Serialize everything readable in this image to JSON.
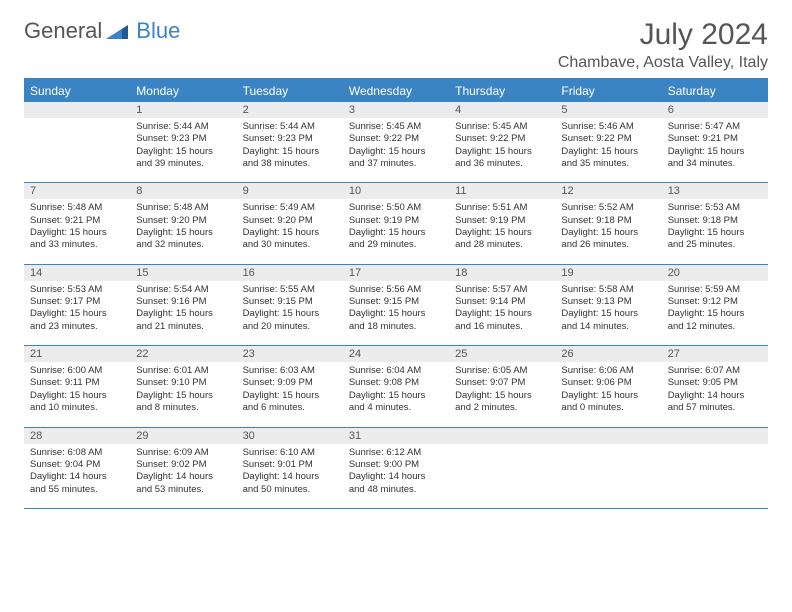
{
  "logo": {
    "general": "General",
    "blue": "Blue"
  },
  "title": "July 2024",
  "location": "Chambave, Aosta Valley, Italy",
  "colors": {
    "header_bg": "#3b84c4",
    "header_text": "#ffffff",
    "daynum_bg": "#ececec",
    "body_text": "#333333",
    "rule": "#3b84c4"
  },
  "dayHeaders": [
    "Sunday",
    "Monday",
    "Tuesday",
    "Wednesday",
    "Thursday",
    "Friday",
    "Saturday"
  ],
  "weeks": [
    [
      null,
      {
        "n": "1",
        "sr": "5:44 AM",
        "ss": "9:23 PM",
        "dl": "15 hours and 39 minutes."
      },
      {
        "n": "2",
        "sr": "5:44 AM",
        "ss": "9:23 PM",
        "dl": "15 hours and 38 minutes."
      },
      {
        "n": "3",
        "sr": "5:45 AM",
        "ss": "9:22 PM",
        "dl": "15 hours and 37 minutes."
      },
      {
        "n": "4",
        "sr": "5:45 AM",
        "ss": "9:22 PM",
        "dl": "15 hours and 36 minutes."
      },
      {
        "n": "5",
        "sr": "5:46 AM",
        "ss": "9:22 PM",
        "dl": "15 hours and 35 minutes."
      },
      {
        "n": "6",
        "sr": "5:47 AM",
        "ss": "9:21 PM",
        "dl": "15 hours and 34 minutes."
      }
    ],
    [
      {
        "n": "7",
        "sr": "5:48 AM",
        "ss": "9:21 PM",
        "dl": "15 hours and 33 minutes."
      },
      {
        "n": "8",
        "sr": "5:48 AM",
        "ss": "9:20 PM",
        "dl": "15 hours and 32 minutes."
      },
      {
        "n": "9",
        "sr": "5:49 AM",
        "ss": "9:20 PM",
        "dl": "15 hours and 30 minutes."
      },
      {
        "n": "10",
        "sr": "5:50 AM",
        "ss": "9:19 PM",
        "dl": "15 hours and 29 minutes."
      },
      {
        "n": "11",
        "sr": "5:51 AM",
        "ss": "9:19 PM",
        "dl": "15 hours and 28 minutes."
      },
      {
        "n": "12",
        "sr": "5:52 AM",
        "ss": "9:18 PM",
        "dl": "15 hours and 26 minutes."
      },
      {
        "n": "13",
        "sr": "5:53 AM",
        "ss": "9:18 PM",
        "dl": "15 hours and 25 minutes."
      }
    ],
    [
      {
        "n": "14",
        "sr": "5:53 AM",
        "ss": "9:17 PM",
        "dl": "15 hours and 23 minutes."
      },
      {
        "n": "15",
        "sr": "5:54 AM",
        "ss": "9:16 PM",
        "dl": "15 hours and 21 minutes."
      },
      {
        "n": "16",
        "sr": "5:55 AM",
        "ss": "9:15 PM",
        "dl": "15 hours and 20 minutes."
      },
      {
        "n": "17",
        "sr": "5:56 AM",
        "ss": "9:15 PM",
        "dl": "15 hours and 18 minutes."
      },
      {
        "n": "18",
        "sr": "5:57 AM",
        "ss": "9:14 PM",
        "dl": "15 hours and 16 minutes."
      },
      {
        "n": "19",
        "sr": "5:58 AM",
        "ss": "9:13 PM",
        "dl": "15 hours and 14 minutes."
      },
      {
        "n": "20",
        "sr": "5:59 AM",
        "ss": "9:12 PM",
        "dl": "15 hours and 12 minutes."
      }
    ],
    [
      {
        "n": "21",
        "sr": "6:00 AM",
        "ss": "9:11 PM",
        "dl": "15 hours and 10 minutes."
      },
      {
        "n": "22",
        "sr": "6:01 AM",
        "ss": "9:10 PM",
        "dl": "15 hours and 8 minutes."
      },
      {
        "n": "23",
        "sr": "6:03 AM",
        "ss": "9:09 PM",
        "dl": "15 hours and 6 minutes."
      },
      {
        "n": "24",
        "sr": "6:04 AM",
        "ss": "9:08 PM",
        "dl": "15 hours and 4 minutes."
      },
      {
        "n": "25",
        "sr": "6:05 AM",
        "ss": "9:07 PM",
        "dl": "15 hours and 2 minutes."
      },
      {
        "n": "26",
        "sr": "6:06 AM",
        "ss": "9:06 PM",
        "dl": "15 hours and 0 minutes."
      },
      {
        "n": "27",
        "sr": "6:07 AM",
        "ss": "9:05 PM",
        "dl": "14 hours and 57 minutes."
      }
    ],
    [
      {
        "n": "28",
        "sr": "6:08 AM",
        "ss": "9:04 PM",
        "dl": "14 hours and 55 minutes."
      },
      {
        "n": "29",
        "sr": "6:09 AM",
        "ss": "9:02 PM",
        "dl": "14 hours and 53 minutes."
      },
      {
        "n": "30",
        "sr": "6:10 AM",
        "ss": "9:01 PM",
        "dl": "14 hours and 50 minutes."
      },
      {
        "n": "31",
        "sr": "6:12 AM",
        "ss": "9:00 PM",
        "dl": "14 hours and 48 minutes."
      },
      null,
      null,
      null
    ]
  ],
  "labels": {
    "sunrise": "Sunrise: ",
    "sunset": "Sunset: ",
    "daylight": "Daylight: "
  }
}
